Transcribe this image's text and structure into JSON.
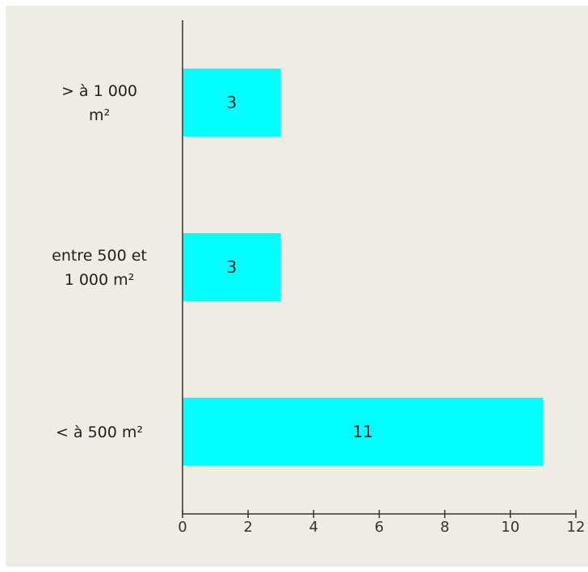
{
  "chart_data": {
    "type": "bar",
    "orientation": "horizontal",
    "categories": [
      [
        "> à 1 000",
        "m²"
      ],
      [
        "entre 500 et",
        "1 000 m²"
      ],
      [
        "< à 500 m²"
      ]
    ],
    "values": [
      3,
      3,
      11
    ],
    "data_labels": [
      "3",
      "3",
      "11"
    ],
    "xlim": [
      0,
      12
    ],
    "x_ticks": [
      0,
      2,
      4,
      6,
      8,
      10,
      12
    ],
    "x_tick_labels": [
      "0",
      "2",
      "4",
      "6",
      "8",
      "10",
      "12"
    ],
    "grid": false,
    "legend": "none",
    "colors": {
      "bar": "#00ffff",
      "background": "#efece3",
      "axis": "#333333"
    }
  }
}
